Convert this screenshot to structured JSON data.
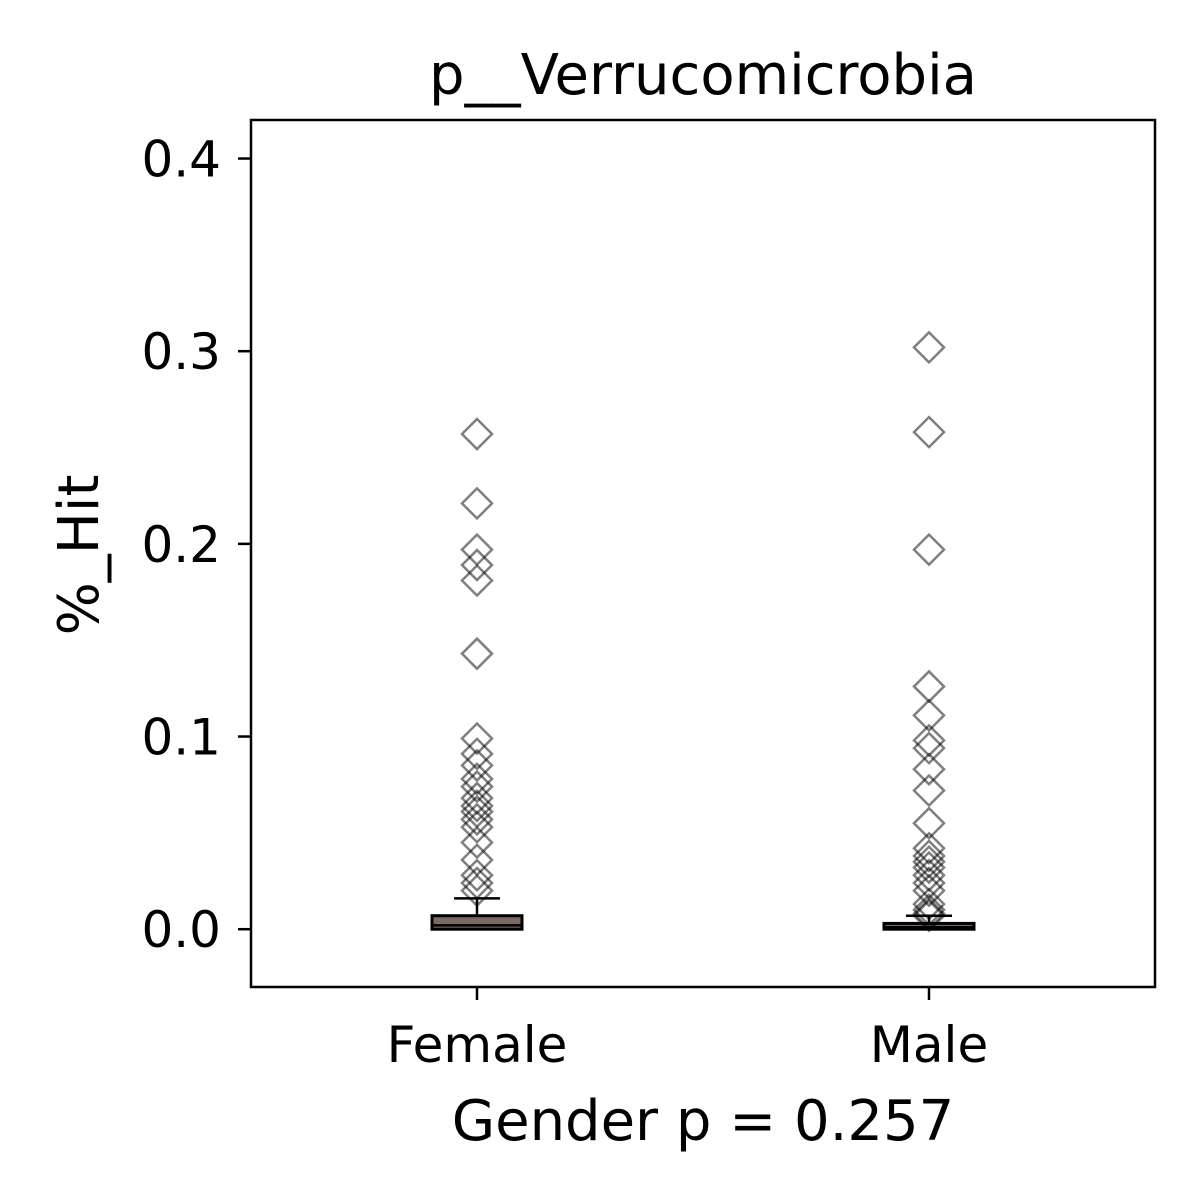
{
  "chart_data": {
    "type": "box",
    "title": "p__Verrucomicrobia",
    "xlabel": "Gender p = 0.257",
    "ylabel": "%_Hit",
    "categories": [
      "Female",
      "Male"
    ],
    "ylim": [
      -0.03,
      0.42
    ],
    "yticks": [
      0.0,
      0.1,
      0.2,
      0.3,
      0.4
    ],
    "ytick_labels": [
      "0.0",
      "0.1",
      "0.2",
      "0.3",
      "0.4"
    ],
    "grid": false,
    "legend": "none",
    "box_color": "#7a6a64",
    "flier_color": "#000000",
    "boxes": [
      {
        "category": "Female",
        "q1": 0.0,
        "median": 0.002,
        "q3": 0.007,
        "whisker_low": 0.0,
        "whisker_high": 0.016,
        "outliers": [
          0.257,
          0.221,
          0.197,
          0.189,
          0.181,
          0.143,
          0.099,
          0.091,
          0.085,
          0.078,
          0.074,
          0.068,
          0.064,
          0.061,
          0.057,
          0.053,
          0.045,
          0.036,
          0.028,
          0.024,
          0.02
        ]
      },
      {
        "category": "Male",
        "q1": 0.0,
        "median": 0.001,
        "q3": 0.003,
        "whisker_low": 0.0,
        "whisker_high": 0.007,
        "outliers": [
          0.302,
          0.258,
          0.197,
          0.126,
          0.111,
          0.098,
          0.094,
          0.083,
          0.072,
          0.055,
          0.042,
          0.038,
          0.035,
          0.032,
          0.028,
          0.024,
          0.02,
          0.013,
          0.01,
          0.008,
          0.007
        ]
      }
    ]
  }
}
